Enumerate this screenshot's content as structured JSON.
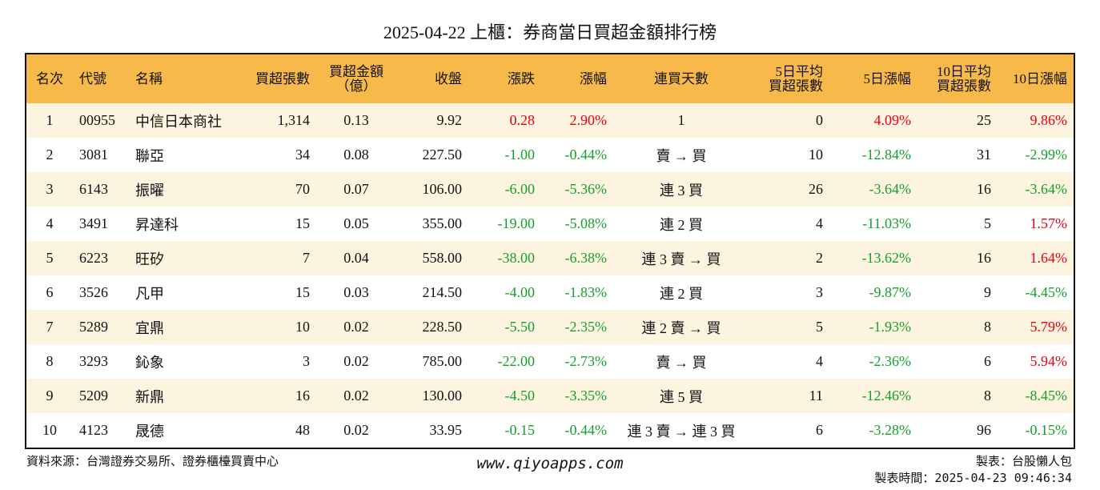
{
  "title": "2025-04-22 上櫃：券商當日買超金額排行榜",
  "colors": {
    "header_bg": "#f7b94a",
    "odd_row_bg": "#fdf4e0",
    "even_row_bg": "#ffffff",
    "up": "#e60012",
    "down": "#13a02c"
  },
  "table": {
    "headers": {
      "rank": "名次",
      "code": "代號",
      "name": "名稱",
      "net_buy_lots": "買超張數",
      "net_buy_amount_line1": "買超金額",
      "net_buy_amount_line2": "（億）",
      "close": "收盤",
      "change": "漲跌",
      "change_pct": "漲幅",
      "consecutive_days": "連買天數",
      "avg5_line1": "5日平均",
      "avg5_line2": "買超張數",
      "pct5": "5日漲幅",
      "avg10_line1": "10日平均",
      "avg10_line2": "買超張數",
      "pct10": "10日漲幅"
    },
    "rows": [
      {
        "rank": "1",
        "code": "00955",
        "name": "中信日本商社",
        "lots": "1,314",
        "amount": "0.13",
        "close": "9.92",
        "change": "0.28",
        "change_dir": "up",
        "pct": "2.90%",
        "pct_dir": "up",
        "days": "1",
        "avg5": "0",
        "pct5": "4.09%",
        "pct5_dir": "up",
        "avg10": "25",
        "pct10": "9.86%",
        "pct10_dir": "up"
      },
      {
        "rank": "2",
        "code": "3081",
        "name": "聯亞",
        "lots": "34",
        "amount": "0.08",
        "close": "227.50",
        "change": "-1.00",
        "change_dir": "down",
        "pct": "-0.44%",
        "pct_dir": "down",
        "days": "賣 → 買",
        "avg5": "10",
        "pct5": "-12.84%",
        "pct5_dir": "down",
        "avg10": "31",
        "pct10": "-2.99%",
        "pct10_dir": "down"
      },
      {
        "rank": "3",
        "code": "6143",
        "name": "振曜",
        "lots": "70",
        "amount": "0.07",
        "close": "106.00",
        "change": "-6.00",
        "change_dir": "down",
        "pct": "-5.36%",
        "pct_dir": "down",
        "days": "連 3 買",
        "avg5": "26",
        "pct5": "-3.64%",
        "pct5_dir": "down",
        "avg10": "16",
        "pct10": "-3.64%",
        "pct10_dir": "down"
      },
      {
        "rank": "4",
        "code": "3491",
        "name": "昇達科",
        "lots": "15",
        "amount": "0.05",
        "close": "355.00",
        "change": "-19.00",
        "change_dir": "down",
        "pct": "-5.08%",
        "pct_dir": "down",
        "days": "連 2 買",
        "avg5": "4",
        "pct5": "-11.03%",
        "pct5_dir": "down",
        "avg10": "5",
        "pct10": "1.57%",
        "pct10_dir": "up"
      },
      {
        "rank": "5",
        "code": "6223",
        "name": "旺矽",
        "lots": "7",
        "amount": "0.04",
        "close": "558.00",
        "change": "-38.00",
        "change_dir": "down",
        "pct": "-6.38%",
        "pct_dir": "down",
        "days": "連 3 賣 → 買",
        "avg5": "2",
        "pct5": "-13.62%",
        "pct5_dir": "down",
        "avg10": "16",
        "pct10": "1.64%",
        "pct10_dir": "up"
      },
      {
        "rank": "6",
        "code": "3526",
        "name": "凡甲",
        "lots": "15",
        "amount": "0.03",
        "close": "214.50",
        "change": "-4.00",
        "change_dir": "down",
        "pct": "-1.83%",
        "pct_dir": "down",
        "days": "連 2 買",
        "avg5": "3",
        "pct5": "-9.87%",
        "pct5_dir": "down",
        "avg10": "9",
        "pct10": "-4.45%",
        "pct10_dir": "down"
      },
      {
        "rank": "7",
        "code": "5289",
        "name": "宜鼎",
        "lots": "10",
        "amount": "0.02",
        "close": "228.50",
        "change": "-5.50",
        "change_dir": "down",
        "pct": "-2.35%",
        "pct_dir": "down",
        "days": "連 2 賣 → 買",
        "avg5": "5",
        "pct5": "-1.93%",
        "pct5_dir": "down",
        "avg10": "8",
        "pct10": "5.79%",
        "pct10_dir": "up"
      },
      {
        "rank": "8",
        "code": "3293",
        "name": "鈊象",
        "lots": "3",
        "amount": "0.02",
        "close": "785.00",
        "change": "-22.00",
        "change_dir": "down",
        "pct": "-2.73%",
        "pct_dir": "down",
        "days": "賣 → 買",
        "avg5": "4",
        "pct5": "-2.36%",
        "pct5_dir": "down",
        "avg10": "6",
        "pct10": "5.94%",
        "pct10_dir": "up"
      },
      {
        "rank": "9",
        "code": "5209",
        "name": "新鼎",
        "lots": "16",
        "amount": "0.02",
        "close": "130.00",
        "change": "-4.50",
        "change_dir": "down",
        "pct": "-3.35%",
        "pct_dir": "down",
        "days": "連 5 買",
        "avg5": "11",
        "pct5": "-12.46%",
        "pct5_dir": "down",
        "avg10": "8",
        "pct10": "-8.45%",
        "pct10_dir": "down"
      },
      {
        "rank": "10",
        "code": "4123",
        "name": "晟德",
        "lots": "48",
        "amount": "0.02",
        "close": "33.95",
        "change": "-0.15",
        "change_dir": "down",
        "pct": "-0.44%",
        "pct_dir": "down",
        "days": "連 3 賣 → 連 3 買",
        "avg5": "6",
        "pct5": "-3.28%",
        "pct5_dir": "down",
        "avg10": "96",
        "pct10": "-0.15%",
        "pct10_dir": "down"
      }
    ]
  },
  "footer": {
    "source": "資料來源：台灣證券交易所、證券櫃檯買賣中心",
    "website": "www.qiyoapps.com",
    "maker": "製表：台股懶人包",
    "made_time": "製表時間：2025-04-23 09:46:34"
  }
}
